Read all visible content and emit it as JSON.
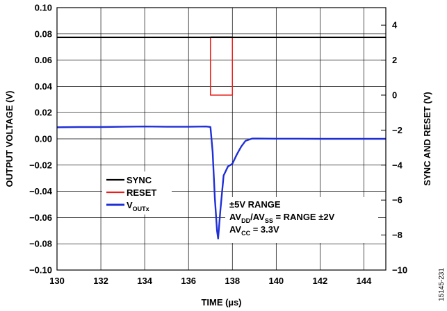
{
  "chart_data": {
    "type": "line",
    "xlabel": "TIME (µs)",
    "ylabel": "OUTPUT VOLTAGE (V)",
    "y2label": "SYNC AND RESET (V)",
    "xlim": [
      130,
      145
    ],
    "ylim": [
      -0.1,
      0.1
    ],
    "y2lim": [
      -10,
      5
    ],
    "x_ticks": [
      "130",
      "132",
      "134",
      "136",
      "138",
      "140",
      "142",
      "144"
    ],
    "y_ticks": [
      "0.10",
      "0.08",
      "0.06",
      "0.04",
      "0.02",
      "0.00",
      "−0.02",
      "−0.04",
      "−0.06",
      "−0.08",
      "−0.10"
    ],
    "y2_ticks": [
      "4",
      "2",
      "0",
      "−2",
      "−4",
      "−6",
      "−8",
      "−10"
    ],
    "grid": true,
    "legend_position": "lower-left",
    "series": [
      {
        "name": "SYNC",
        "color": "#000000",
        "axis": "right",
        "x": [
          130,
          137.0,
          137.0,
          138.0,
          138.0,
          145
        ],
        "y": [
          3.3,
          3.3,
          3.3,
          3.3,
          3.3,
          3.3
        ]
      },
      {
        "name": "RESET",
        "color": "#e8201c",
        "axis": "right",
        "x": [
          130,
          137.0,
          137.0,
          138.0,
          138.0,
          145
        ],
        "y": [
          3.3,
          3.3,
          0,
          0,
          3.3,
          3.3
        ]
      },
      {
        "name": "V",
        "name_subscript": "OUTx",
        "color": "#1f2fd6",
        "axis": "left",
        "x": [
          130,
          131,
          132,
          133,
          134,
          135,
          136,
          136.8,
          137.0,
          137.1,
          137.2,
          137.3,
          137.35,
          137.45,
          137.6,
          137.8,
          138.0,
          138.2,
          138.4,
          138.6,
          138.9,
          139.2,
          140,
          141,
          142,
          143,
          144,
          145
        ],
        "y": [
          0.0088,
          0.009,
          0.009,
          0.0092,
          0.0094,
          0.0092,
          0.0092,
          0.0094,
          0.009,
          -0.01,
          -0.045,
          -0.07,
          -0.076,
          -0.055,
          -0.028,
          -0.021,
          -0.019,
          -0.012,
          -0.006,
          -0.0015,
          0.0002,
          0.0002,
          0.0001,
          0.0001,
          0.0,
          0.0,
          0.0,
          0.0
        ]
      }
    ],
    "annotations": [
      {
        "parts": [
          {
            "t": "±5V RANGE"
          }
        ]
      },
      {
        "parts": [
          {
            "t": "AV"
          },
          {
            "t": "DD",
            "sub": true
          },
          {
            "t": "/AV"
          },
          {
            "t": "SS",
            "sub": true
          },
          {
            "t": " = RANGE ±2V"
          }
        ]
      },
      {
        "parts": [
          {
            "t": "AV"
          },
          {
            "t": "CC",
            "sub": true
          },
          {
            "t": " = 3.3V"
          }
        ]
      }
    ],
    "figure_id": "15145-231"
  }
}
